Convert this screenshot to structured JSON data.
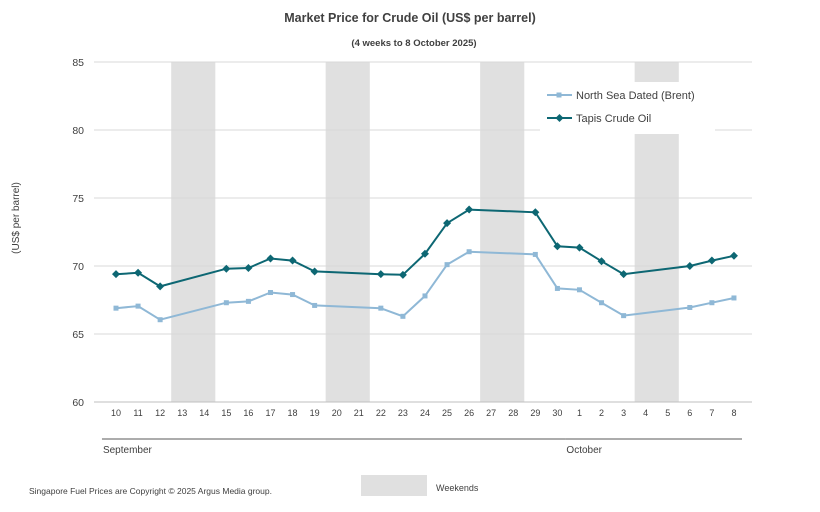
{
  "chart_data": {
    "type": "line",
    "title": "Market Price for Crude  Oil (US$ per barrel)",
    "subtitle": "(4 weeks to 8 October 2025)",
    "ylabel": "(US$ per barrel)",
    "xlabel": "",
    "ylim": [
      60,
      85
    ],
    "yticks": [
      60,
      65,
      70,
      75,
      80,
      85
    ],
    "grid": true,
    "legend_position": "top-right",
    "categories": [
      "10",
      "11",
      "12",
      "13",
      "14",
      "15",
      "16",
      "17",
      "18",
      "19",
      "20",
      "21",
      "22",
      "23",
      "24",
      "25",
      "26",
      "27",
      "28",
      "29",
      "30",
      "1",
      "2",
      "3",
      "4",
      "5",
      "6",
      "7",
      "8"
    ],
    "month_groups": [
      {
        "label": "September",
        "start": 0,
        "end": 20
      },
      {
        "label": "October",
        "start": 21,
        "end": 28
      }
    ],
    "weekend_indices": [
      3,
      4,
      10,
      11,
      17,
      18,
      24,
      25
    ],
    "weekend_label": "Weekends",
    "series": [
      {
        "name": "North Sea Dated (Brent)",
        "color": "#8fb8d6",
        "marker": "square",
        "values": [
          66.9,
          67.05,
          66.05,
          null,
          null,
          67.3,
          67.4,
          68.05,
          67.9,
          67.1,
          null,
          null,
          66.9,
          66.3,
          67.8,
          70.1,
          71.05,
          null,
          null,
          70.85,
          68.35,
          68.25,
          67.3,
          66.35,
          null,
          null,
          66.95,
          67.3,
          67.65
        ]
      },
      {
        "name": "Tapis Crude Oil",
        "color": "#0d6773",
        "marker": "diamond",
        "values": [
          69.4,
          69.5,
          68.5,
          null,
          null,
          69.8,
          69.85,
          70.55,
          70.4,
          69.6,
          null,
          null,
          69.4,
          69.35,
          70.9,
          73.15,
          74.15,
          null,
          null,
          73.95,
          71.45,
          71.35,
          70.35,
          69.4,
          null,
          null,
          70.0,
          70.4,
          70.75
        ]
      }
    ]
  },
  "footer": {
    "copyright": "Singapore Fuel Prices are Copyright © 2025 Argus Media group."
  },
  "colors": {
    "weekend_fill": "#e0e0e0",
    "grid": "#d9d9d9",
    "text": "#404040",
    "title": "#404040"
  }
}
